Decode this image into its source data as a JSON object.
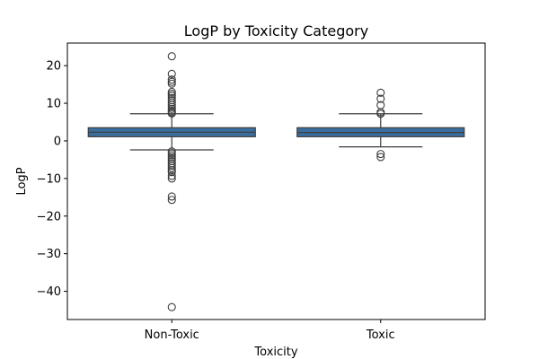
{
  "chart_data": {
    "type": "box",
    "title": "LogP by Toxicity Category",
    "xlabel": "Toxicity",
    "ylabel": "LogP",
    "categories": [
      "Non-Toxic",
      "Toxic"
    ],
    "ylim": [
      -47.5,
      26
    ],
    "yticks": [
      20,
      10,
      0,
      -10,
      -20,
      -30,
      -40
    ],
    "ytick_labels": [
      "20",
      "10",
      "0",
      "−10",
      "−20",
      "−30",
      "−40"
    ],
    "grid": false,
    "box_color": "#3a6e9e",
    "edge_color": "#3d3d3d",
    "boxes": [
      {
        "category": "Non-Toxic",
        "whisker_low": -2.4,
        "q1": 1.1,
        "median": 2.3,
        "q3": 3.5,
        "whisker_high": 7.2,
        "outliers": [
          22.5,
          17.8,
          16.3,
          15.7,
          15.2,
          13.0,
          12.5,
          12.0,
          11.4,
          10.8,
          10.2,
          9.6,
          9.0,
          8.5,
          8.0,
          7.6,
          7.3,
          -2.8,
          -3.3,
          -3.8,
          -4.3,
          -4.8,
          -5.4,
          -6.0,
          -6.6,
          -7.2,
          -7.8,
          -8.3,
          -9.3,
          -10.0,
          -14.8,
          -15.7,
          -44.2
        ]
      },
      {
        "category": "Toxic",
        "whisker_low": -1.6,
        "q1": 1.1,
        "median": 2.2,
        "q3": 3.5,
        "whisker_high": 7.2,
        "outliers": [
          12.8,
          11.2,
          9.5,
          7.6,
          7.2,
          -3.5,
          -4.3
        ]
      }
    ]
  }
}
